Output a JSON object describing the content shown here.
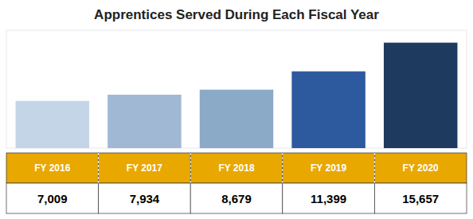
{
  "chart_data": {
    "type": "bar",
    "title": "Apprentices Served During Each Fiscal Year",
    "categories": [
      "FY 2016",
      "FY 2017",
      "FY 2018",
      "FY 2019",
      "FY 2020"
    ],
    "values": [
      7009,
      7934,
      8679,
      11399,
      15657
    ],
    "value_labels": [
      "7,009",
      "7,934",
      "8,679",
      "11,399",
      "15,657"
    ],
    "colors": [
      "#c5d5e8",
      "#a0b8d4",
      "#8aaac8",
      "#2d5a9e",
      "#1e3a5f"
    ],
    "ylim": [
      0,
      17500
    ],
    "yticks": [],
    "data_labels": true,
    "tick_labels": "x",
    "grid": false
  }
}
